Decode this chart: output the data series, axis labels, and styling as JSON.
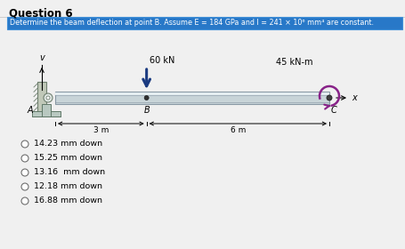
{
  "title": "Question 6",
  "question_text": "Determine the beam deflection at point B. Assume E = 184 GPa and I = 241 × 10⁶ mm⁴ are constant.",
  "force_label": "60 kN",
  "moment_label": "45 kN-m",
  "dist_A_B": "3 m",
  "dist_B_C": "6 m",
  "choices": [
    "14.23 mm down",
    "15.25 mm down",
    "13.16  mm down",
    "12.18 mm down",
    "16.88 mm down"
  ],
  "bg_color": "#f0f0f0",
  "beam_fill": "#c8d4d8",
  "beam_edge": "#8898a4",
  "beam_highlight": "#e4edf0",
  "question_bg": "#2878c8",
  "moment_color": "#882288",
  "force_color": "#1a3a80",
  "pin_fill": "#b8c8c0",
  "pin_edge": "#607868",
  "wall_fill": "#c0c8b8",
  "wall_edge": "#708070"
}
